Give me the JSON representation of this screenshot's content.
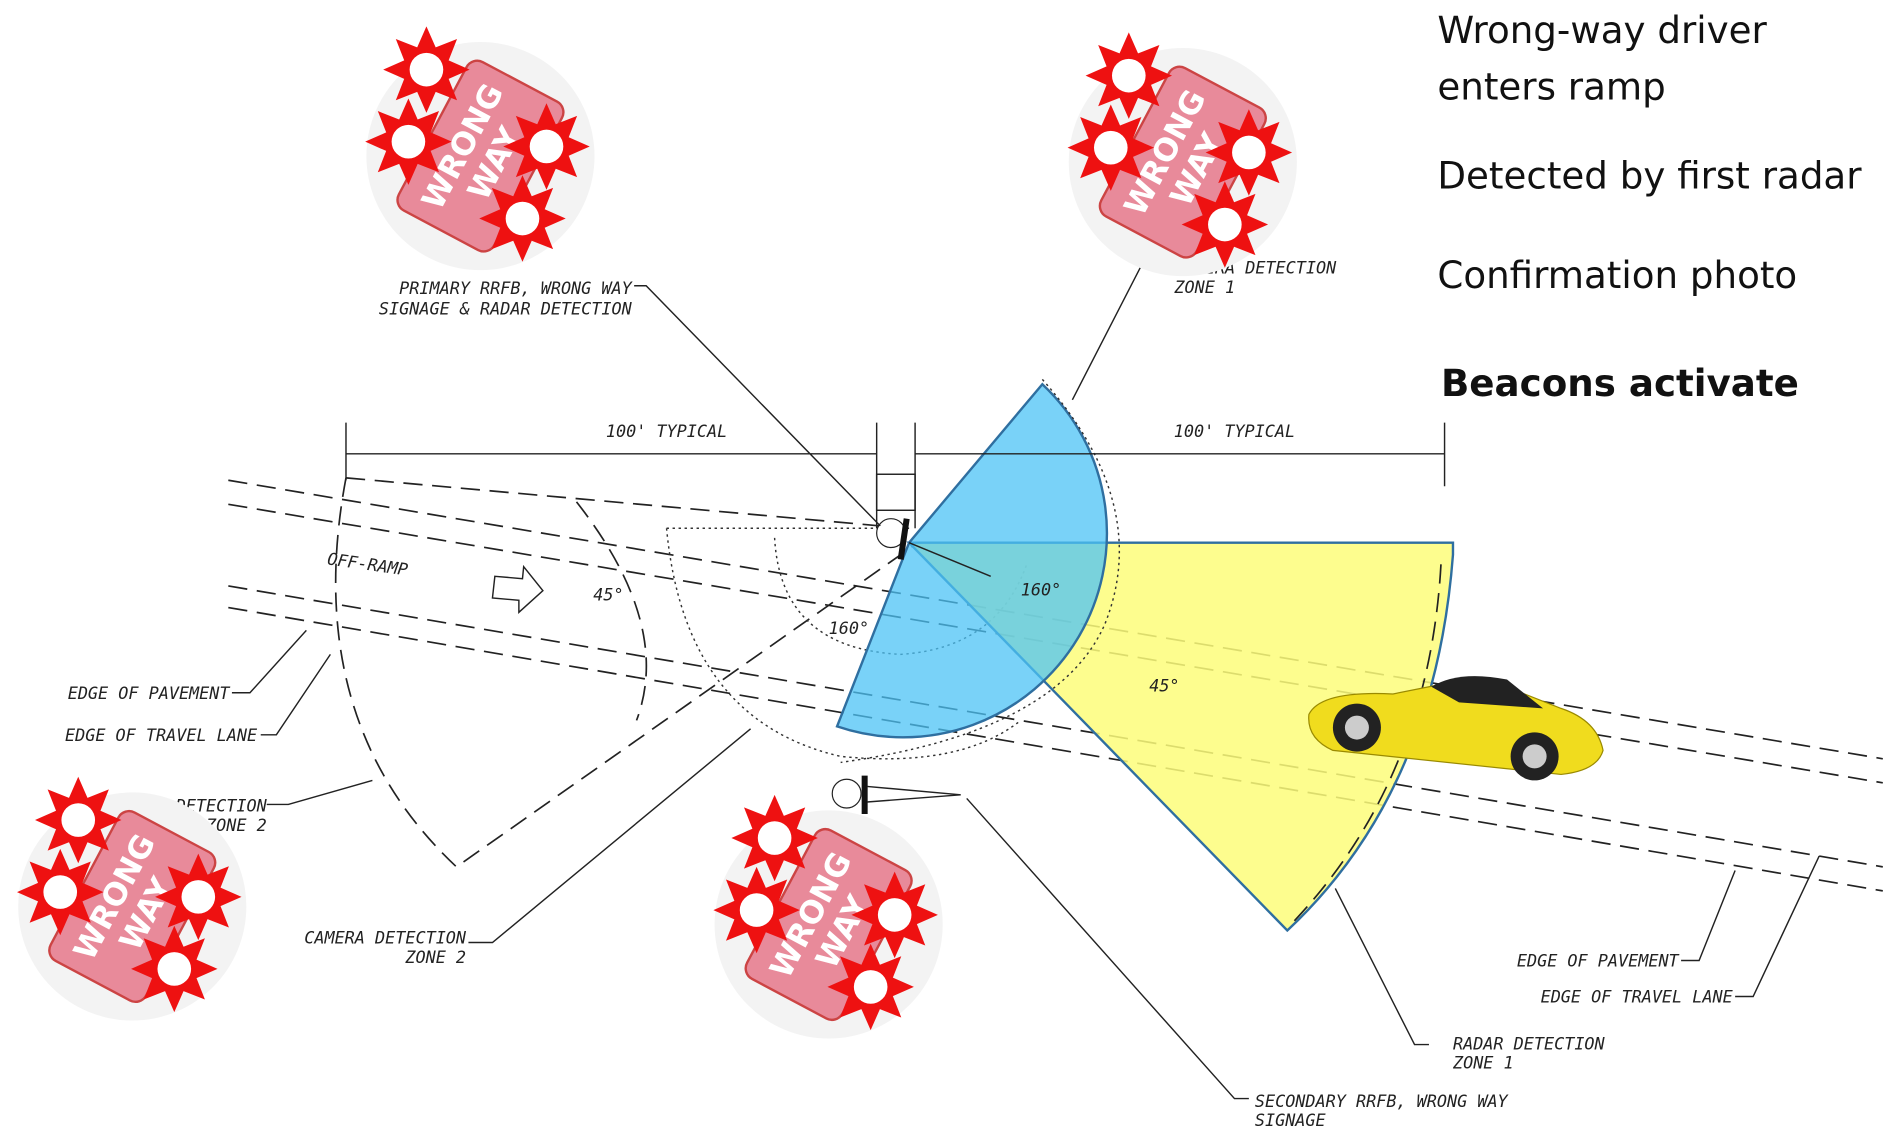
{
  "steps": [
    [
      "Wrong-way driver",
      "enters ramp"
    ],
    [
      "Detected by first radar"
    ],
    [
      "Confirmation photo"
    ],
    [
      "Beacons activate"
    ]
  ],
  "sign": [
    "WRONG",
    "WAY"
  ],
  "callouts": {
    "primary": [
      "PRIMARY RRFB, WRONG WAY",
      "SIGNAGE & RADAR DETECTION"
    ],
    "camera1": [
      "CAMERA DETECTION",
      "ZONE 1"
    ],
    "camera2": [
      "CAMERA DETECTION",
      "ZONE 2"
    ],
    "radar1": [
      "RADAR DETECTION",
      "ZONE 1"
    ],
    "radar2": [
      "RADAR DETECTION",
      "ZONE 2"
    ],
    "secondary": [
      "SECONDARY RRFB, WRONG WAY",
      "SIGNAGE"
    ]
  },
  "edge_labels": [
    "EDGE OF PAVEMENT",
    "EDGE OF TRAVEL LANE",
    "EDGE OF PAVEMENT",
    "EDGE OF TRAVEL LANE"
  ],
  "dimensions": [
    "100' TYPICAL",
    "100' TYPICAL"
  ],
  "angles": [
    "45°",
    "160°",
    "160°",
    "45°"
  ],
  "off_ramp": "OFF-RAMP"
}
